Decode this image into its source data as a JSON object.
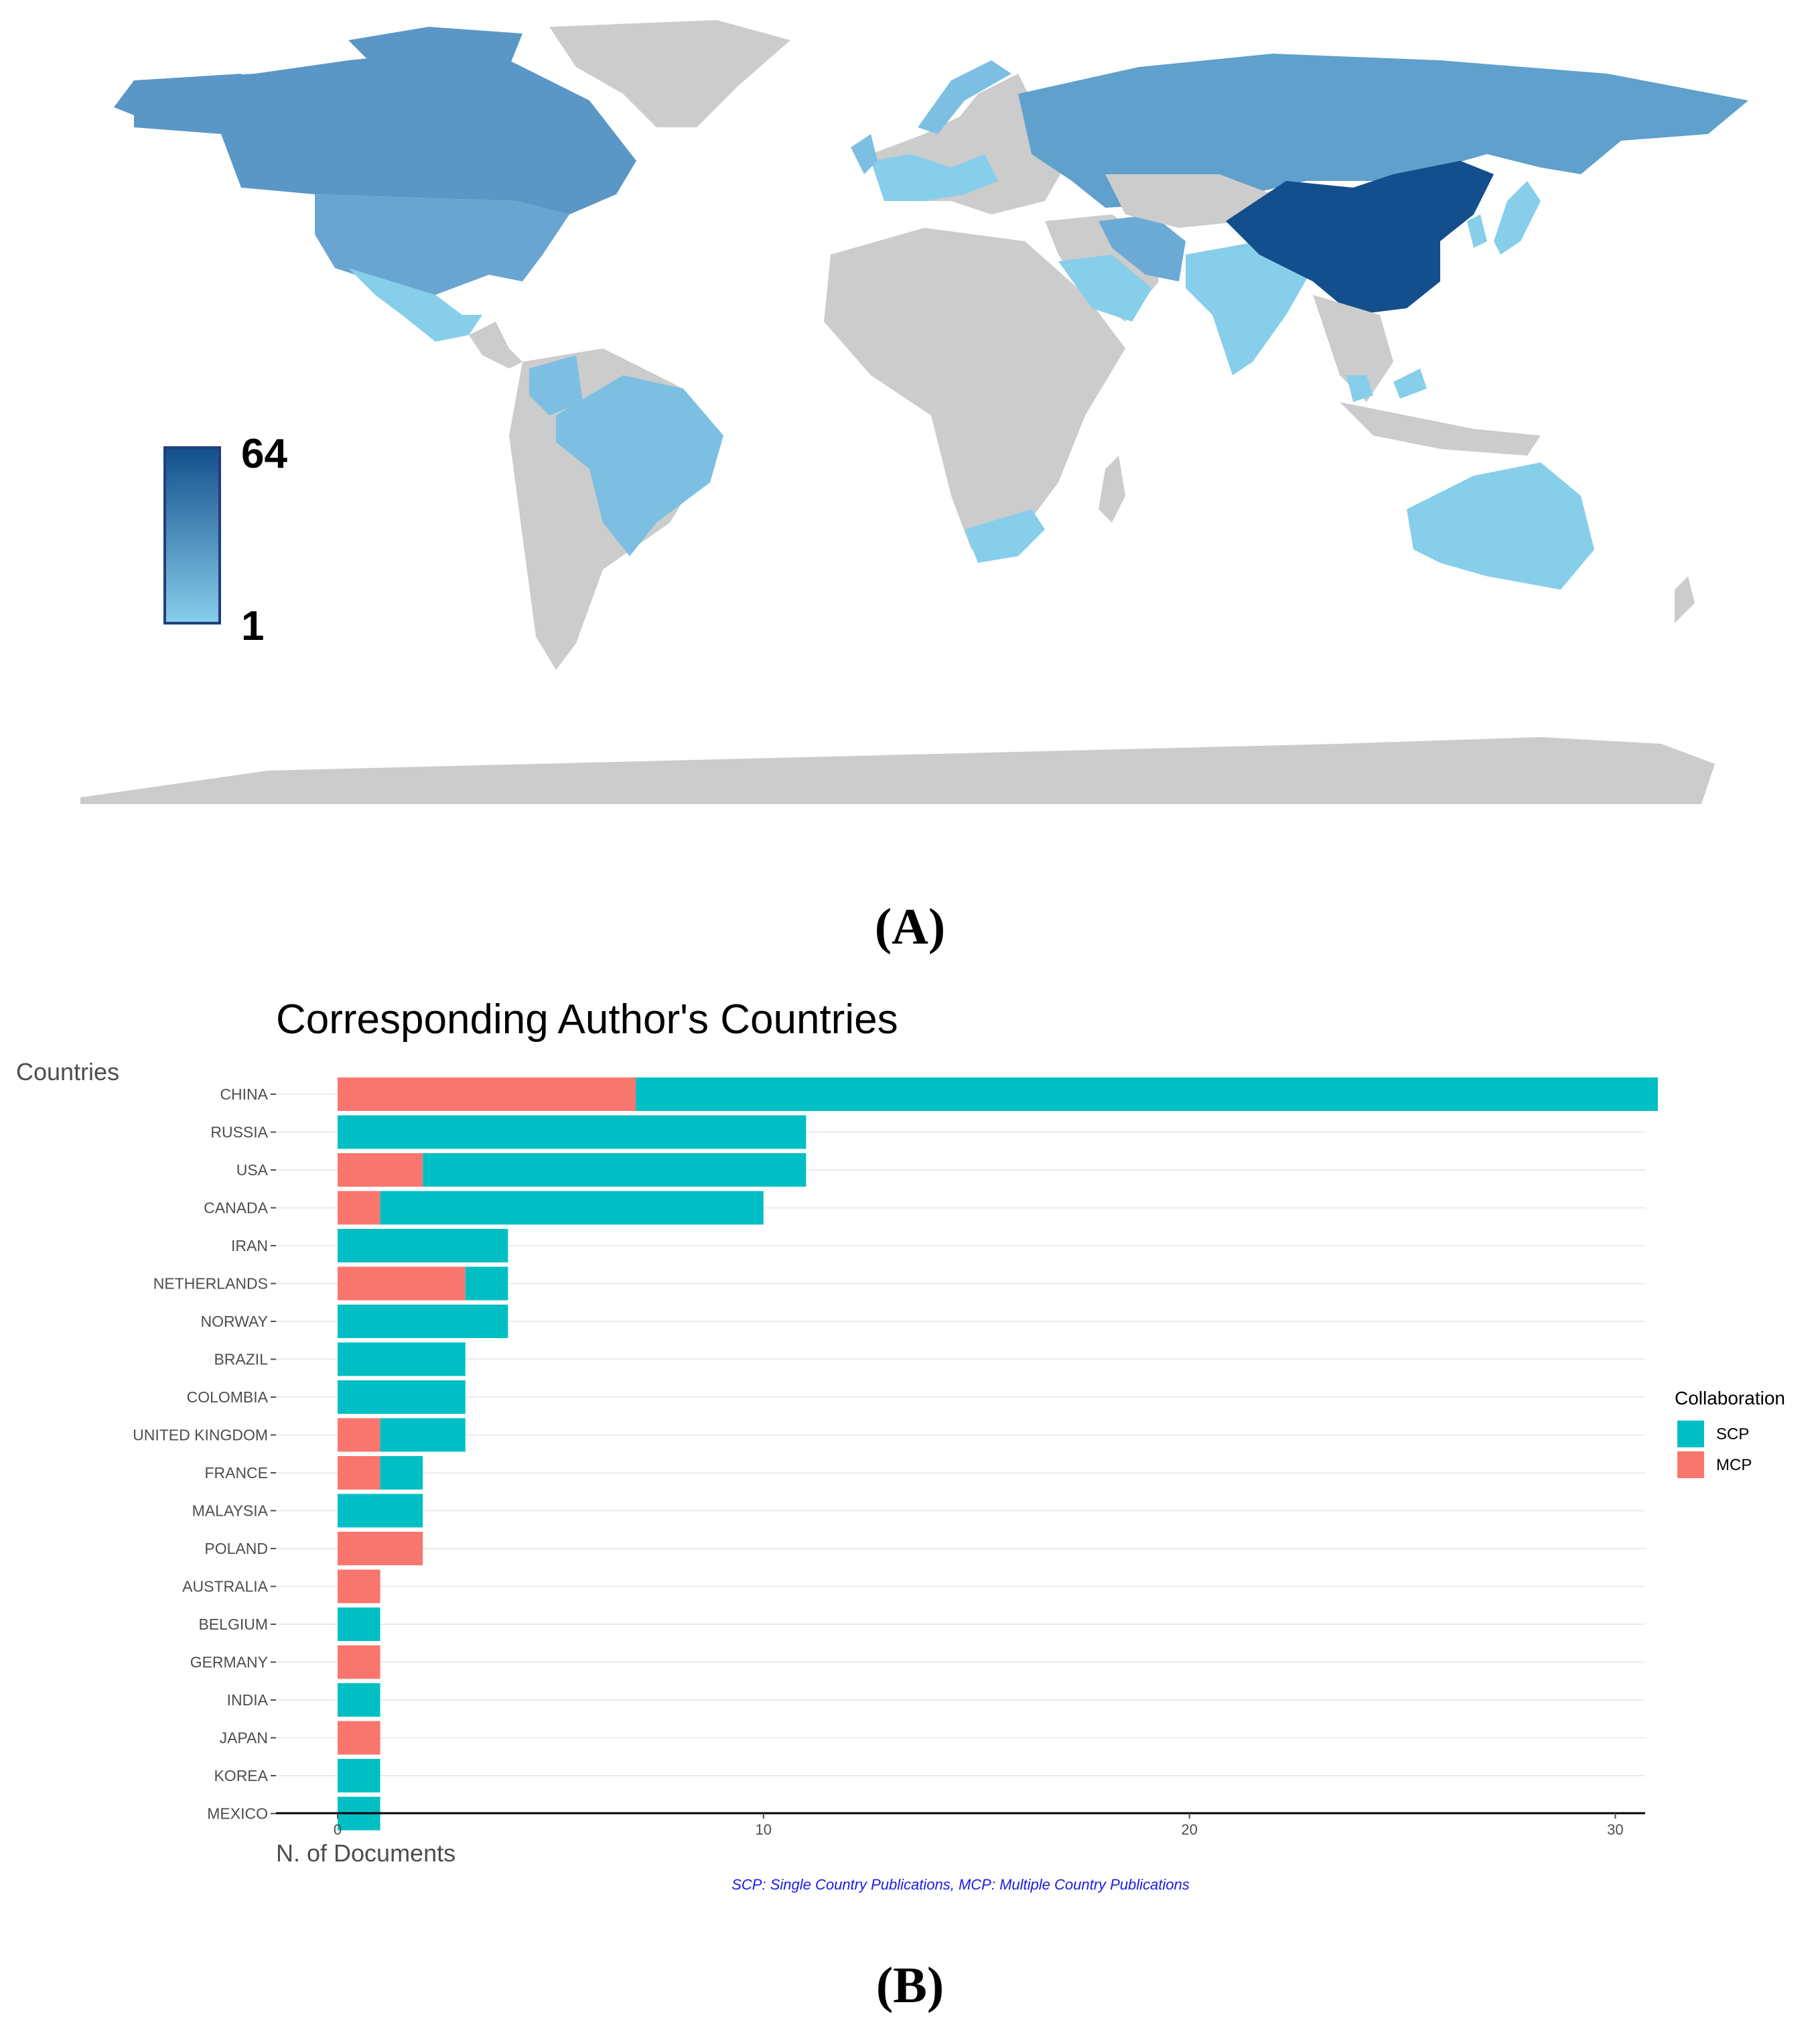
{
  "map": {
    "legend": {
      "max_label": "64",
      "min_label": "1",
      "color_low": "#87CEEB",
      "color_high": "#134F8C"
    },
    "colors": {
      "land_no_data": "#CCCCCC"
    },
    "panel_label": "(A)"
  },
  "chart_panel_label": "(B)",
  "chart_data": [
    {
      "type": "choropleth",
      "title": "",
      "scale": {
        "min": 1,
        "max": 64
      },
      "highlighted_regions": [
        {
          "region": "China",
          "level": "highest"
        },
        {
          "region": "Russia",
          "level": "high"
        },
        {
          "region": "Canada",
          "level": "high"
        },
        {
          "region": "USA",
          "level": "medium"
        },
        {
          "region": "Iran",
          "level": "medium"
        },
        {
          "region": "Brazil",
          "level": "low"
        },
        {
          "region": "Colombia",
          "level": "low"
        },
        {
          "region": "Mexico",
          "level": "low"
        },
        {
          "region": "India",
          "level": "low"
        },
        {
          "region": "Australia",
          "level": "low"
        },
        {
          "region": "South Africa",
          "level": "low"
        },
        {
          "region": "Saudi Arabia",
          "level": "low"
        },
        {
          "region": "Japan",
          "level": "low"
        },
        {
          "region": "Korea",
          "level": "low"
        },
        {
          "region": "Malaysia",
          "level": "low"
        },
        {
          "region": "Western Europe",
          "level": "low"
        },
        {
          "region": "Norway",
          "level": "low"
        }
      ]
    },
    {
      "type": "bar",
      "orientation": "horizontal",
      "stacked": true,
      "title": "Corresponding Author's Countries",
      "ylabel": "Countries",
      "xlabel": "N. of Documents",
      "caption": "SCP: Single Country Publications, MCP: Multiple Country Publications",
      "categories": [
        "CHINA",
        "RUSSIA",
        "USA",
        "CANADA",
        "IRAN",
        "NETHERLANDS",
        "NORWAY",
        "BRAZIL",
        "COLOMBIA",
        "UNITED KINGDOM",
        "FRANCE",
        "MALAYSIA",
        "POLAND",
        "AUSTRALIA",
        "BELGIUM",
        "GERMANY",
        "INDIA",
        "JAPAN",
        "KOREA",
        "MEXICO"
      ],
      "series": [
        {
          "name": "MCP",
          "color": "#F8766D",
          "values": [
            7,
            0,
            2,
            1,
            0,
            3,
            0,
            0,
            0,
            1,
            1,
            0,
            2,
            1,
            0,
            1,
            0,
            1,
            0,
            0
          ]
        },
        {
          "name": "SCP",
          "color": "#00BFC4",
          "values": [
            24,
            11,
            9,
            9,
            4,
            1,
            4,
            3,
            3,
            2,
            1,
            2,
            0,
            0,
            1,
            0,
            1,
            0,
            1,
            1
          ]
        }
      ],
      "xlim": [
        0,
        32
      ],
      "xticks": [
        0,
        10,
        20,
        30
      ],
      "grid": true,
      "legend": {
        "title": "Collaboration",
        "items": [
          "SCP",
          "MCP"
        ],
        "placement": "right"
      }
    }
  ]
}
